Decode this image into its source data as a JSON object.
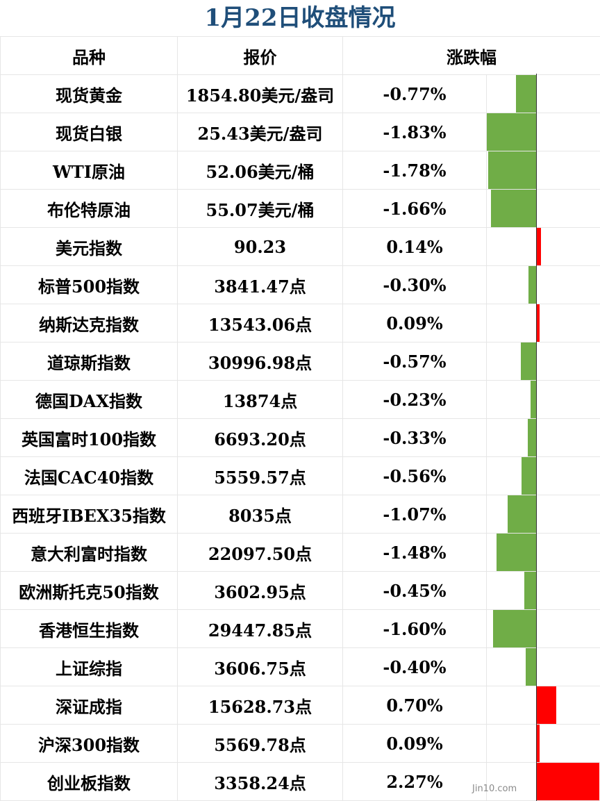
{
  "title": "1月22日收盘情况",
  "headers": [
    "品种",
    "报价",
    "涨跌幅"
  ],
  "watermark": "Jin10.com",
  "colors": {
    "up": "#ff0000",
    "down": "#70ad47",
    "title": "#1f4e79"
  },
  "rows": [
    {
      "name": "现货黄金",
      "price": "1854.80美元/盎司",
      "change_text": "-0.77%"
    },
    {
      "name": "现货白银",
      "price": "25.43美元/盎司",
      "change_text": "-1.83%"
    },
    {
      "name": "WTI原油",
      "price": "52.06美元/桶",
      "change_text": "-1.78%"
    },
    {
      "name": "布伦特原油",
      "price": "55.07美元/桶",
      "change_text": "-1.66%"
    },
    {
      "name": "美元指数",
      "price": "90.23",
      "change_text": "0.14%"
    },
    {
      "name": "标普500指数",
      "price": "3841.47点",
      "change_text": "-0.30%"
    },
    {
      "name": "纳斯达克指数",
      "price": "13543.06点",
      "change_text": "0.09%"
    },
    {
      "name": "道琼斯指数",
      "price": "30996.98点",
      "change_text": "-0.57%"
    },
    {
      "name": "德国DAX指数",
      "price": "13874点",
      "change_text": "-0.23%"
    },
    {
      "name": "英国富时100指数",
      "price": "6693.20点",
      "change_text": "-0.33%"
    },
    {
      "name": "法国CAC40指数",
      "price": "5559.57点",
      "change_text": "-0.56%"
    },
    {
      "name": "西班牙IBEX35指数",
      "price": "8035点",
      "change_text": "-1.07%"
    },
    {
      "name": "意大利富时指数",
      "price": "22097.50点",
      "change_text": "-1.48%"
    },
    {
      "name": "欧洲斯托克50指数",
      "price": "3602.95点",
      "change_text": "-0.45%"
    },
    {
      "name": "香港恒生指数",
      "price": "29447.85点",
      "change_text": "-1.60%"
    },
    {
      "name": "上证综指",
      "price": "3606.75点",
      "change_text": "-0.40%"
    },
    {
      "name": "深证成指",
      "price": "15628.73点",
      "change_text": "0.70%"
    },
    {
      "name": "沪深300指数",
      "price": "5569.78点",
      "change_text": "0.09%"
    },
    {
      "name": "创业板指数",
      "price": "3358.24点",
      "change_text": "2.27%"
    }
  ],
  "chart_data": {
    "type": "bar",
    "categories": [
      "现货黄金",
      "现货白银",
      "WTI原油",
      "布伦特原油",
      "美元指数",
      "标普500指数",
      "纳斯达克指数",
      "道琼斯指数",
      "德国DAX指数",
      "英国富时100指数",
      "法国CAC40指数",
      "西班牙IBEX35指数",
      "意大利富时指数",
      "欧洲斯托克50指数",
      "香港恒生指数",
      "上证综指",
      "深证成指",
      "沪深300指数",
      "创业板指数"
    ],
    "values": [
      -0.77,
      -1.83,
      -1.78,
      -1.66,
      0.14,
      -0.3,
      0.09,
      -0.57,
      -0.23,
      -0.33,
      -0.56,
      -1.07,
      -1.48,
      -0.45,
      -1.6,
      -0.4,
      0.7,
      0.09,
      2.27
    ],
    "title": "",
    "xlabel": "",
    "ylabel": "涨跌幅"
  }
}
